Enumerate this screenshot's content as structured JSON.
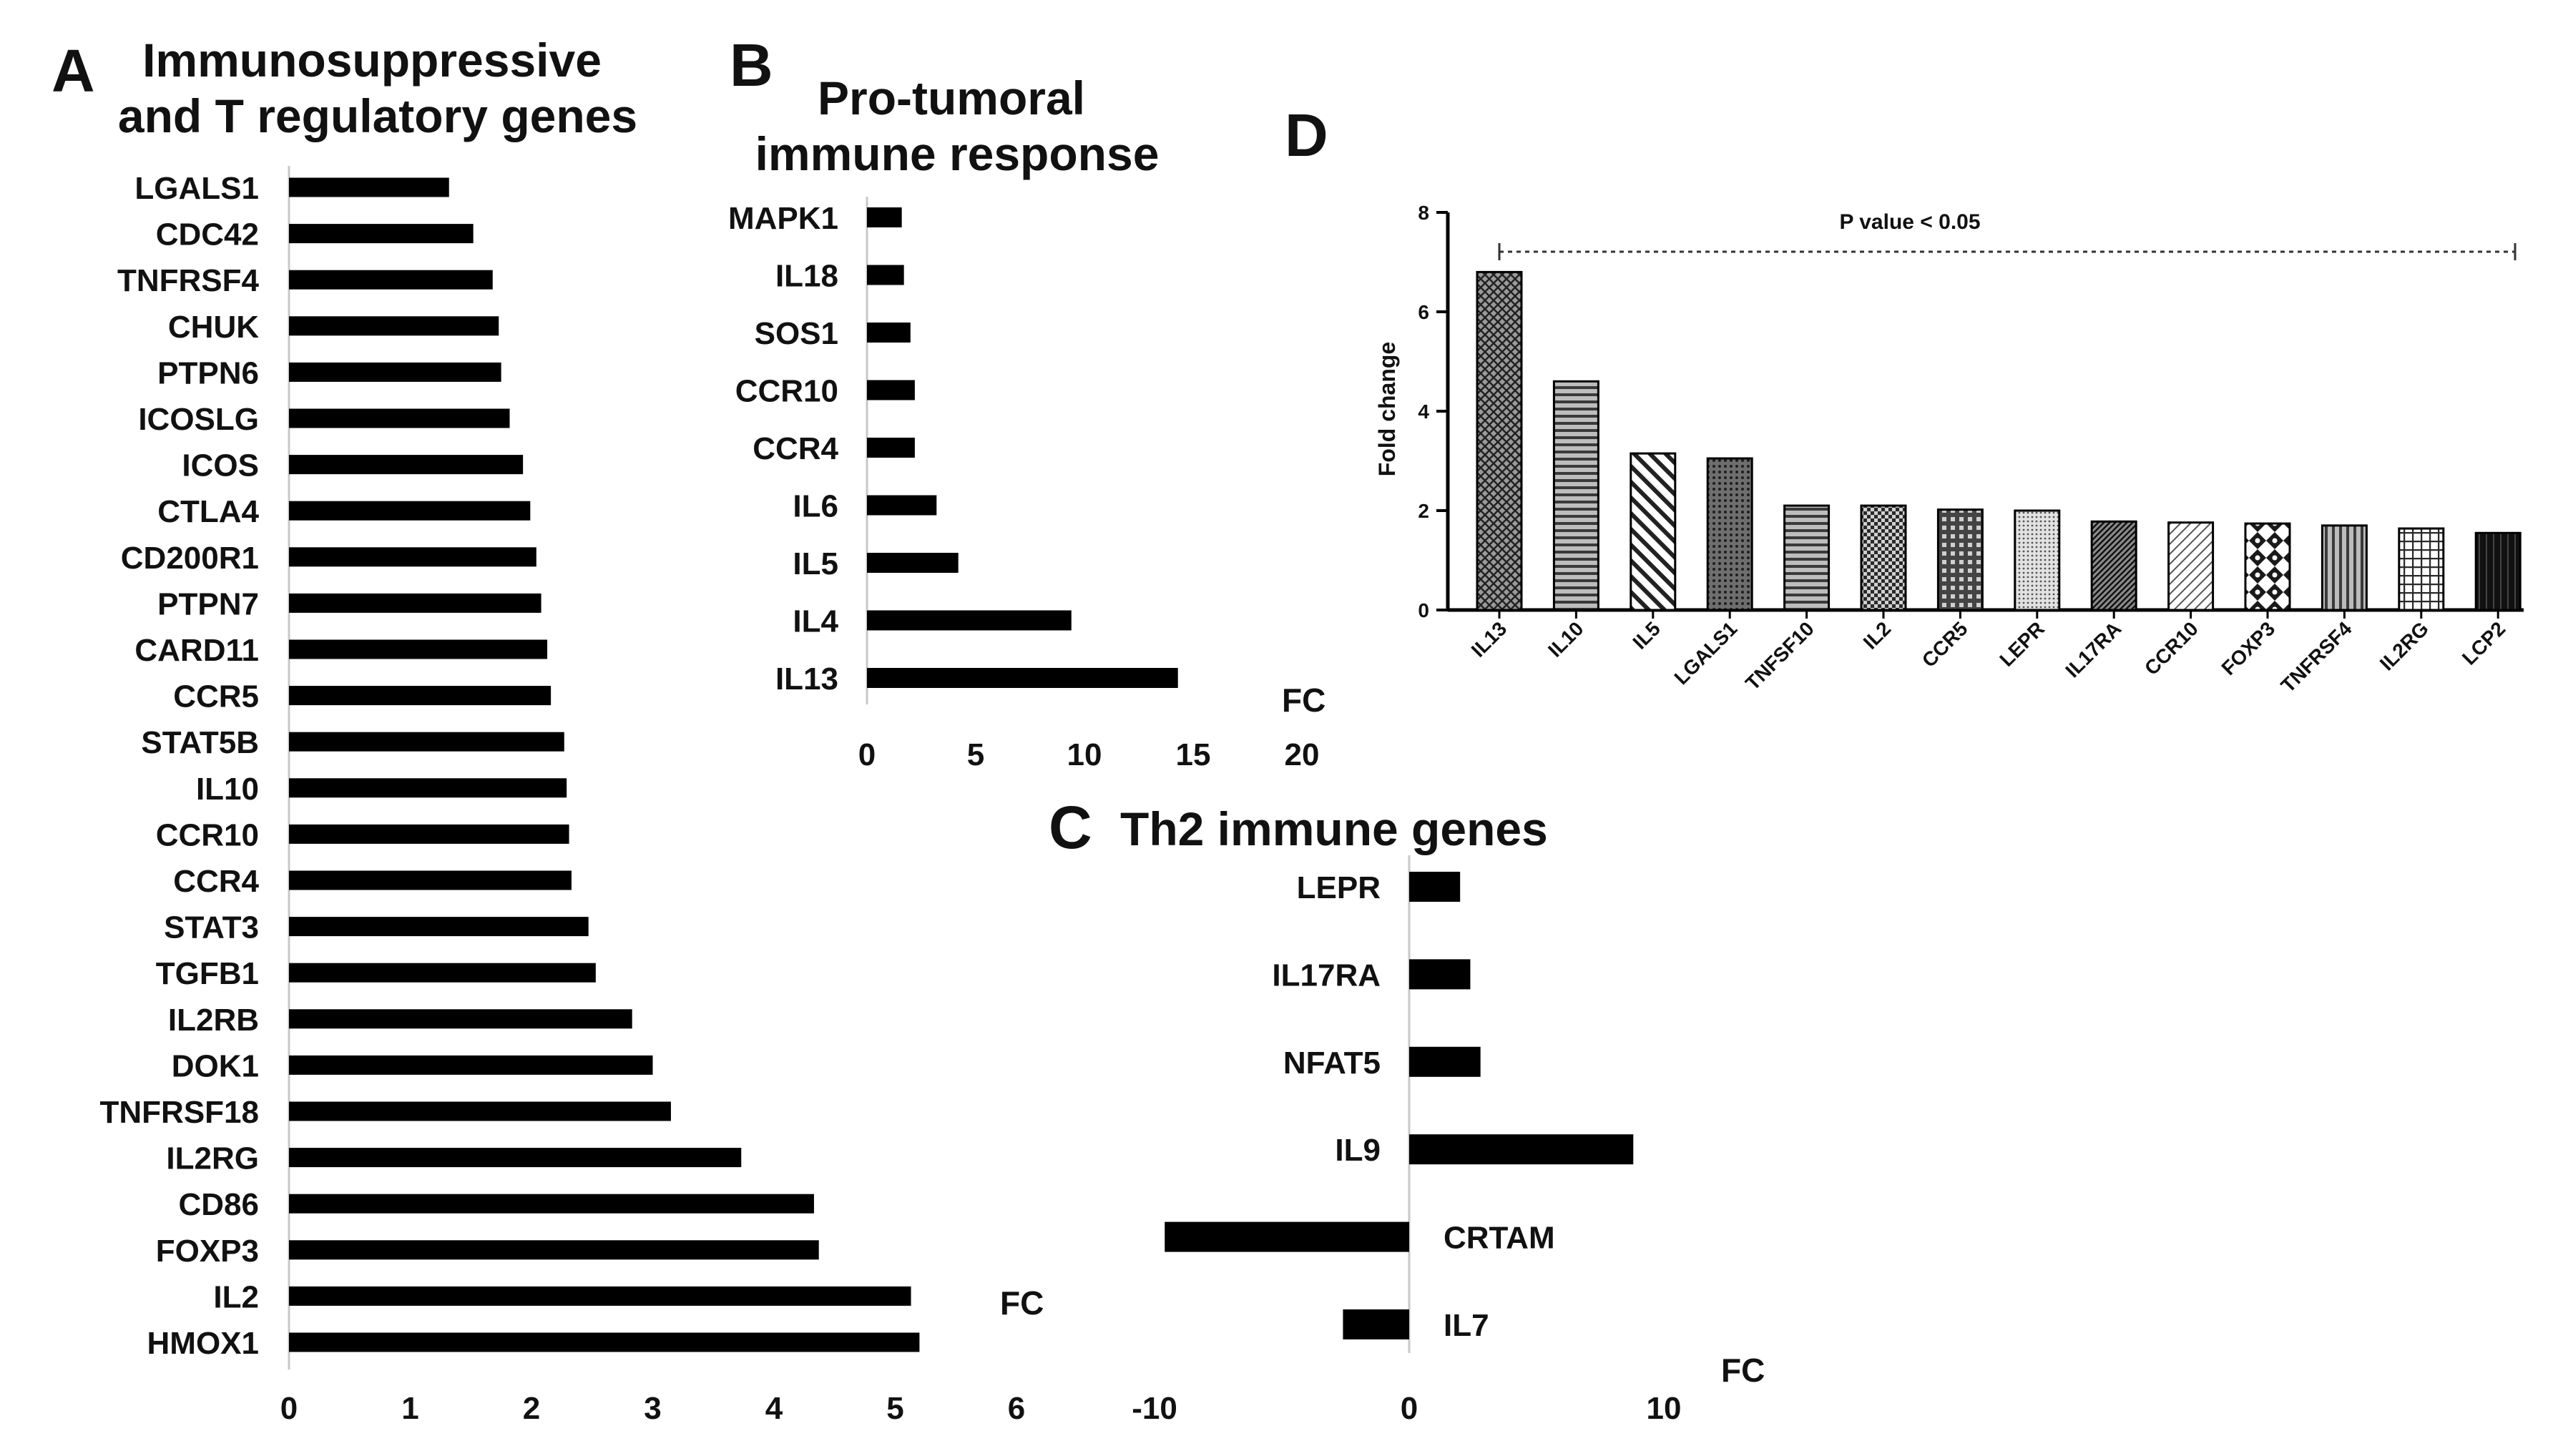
{
  "chart_data": [
    {
      "id": "A",
      "type": "bar",
      "orientation": "horizontal",
      "panel_letter": "A",
      "title_lines": [
        "Immunosuppressive",
        "and T regulatory genes"
      ],
      "xlabel": "FC",
      "xlim": [
        0,
        6
      ],
      "xticks": [
        0,
        1,
        2,
        3,
        4,
        5,
        6
      ],
      "categories": [
        "LGALS1",
        "CDC42",
        "TNFRSF4",
        "CHUK",
        "PTPN6",
        "ICOSLG",
        "ICOS",
        "CTLA4",
        "CD200R1",
        "PTPN7",
        "CARD11",
        "CCR5",
        "STAT5B",
        "IL10",
        "CCR10",
        "CCR4",
        "STAT3",
        "TGFB1",
        "IL2RB",
        "DOK1",
        "TNFRSF18",
        "IL2RG",
        "CD86",
        "FOXP3",
        "IL2",
        "HMOX1"
      ],
      "values": [
        1.32,
        1.52,
        1.68,
        1.73,
        1.75,
        1.82,
        1.93,
        1.99,
        2.04,
        2.08,
        2.13,
        2.16,
        2.27,
        2.29,
        2.31,
        2.33,
        2.47,
        2.53,
        2.83,
        3.0,
        3.15,
        3.73,
        4.33,
        4.37,
        5.13,
        5.2
      ]
    },
    {
      "id": "B",
      "type": "bar",
      "orientation": "horizontal",
      "panel_letter": "B",
      "title_lines": [
        "Pro-tumoral",
        "immune response"
      ],
      "xlabel": "FC",
      "xlim": [
        0,
        20
      ],
      "xticks": [
        0,
        5,
        10,
        15,
        20
      ],
      "categories": [
        "MAPK1",
        "IL18",
        "SOS1",
        "CCR10",
        "CCR4",
        "IL6",
        "IL5",
        "IL4",
        "IL13"
      ],
      "values": [
        1.6,
        1.7,
        2.0,
        2.2,
        2.2,
        3.2,
        4.2,
        9.4,
        14.3
      ]
    },
    {
      "id": "C",
      "type": "bar",
      "orientation": "horizontal",
      "panel_letter": "C",
      "title_lines": [
        "Th2 immune genes"
      ],
      "xlabel": "FC",
      "xlim": [
        -10,
        10
      ],
      "xticks": [
        -10,
        0,
        10
      ],
      "categories": [
        "LEPR",
        "IL17RA",
        "NFAT5",
        "IL9",
        "CRTAM",
        "IL7"
      ],
      "values": [
        2.0,
        2.4,
        2.8,
        8.8,
        -9.6,
        -2.6
      ]
    },
    {
      "id": "D",
      "type": "bar",
      "orientation": "vertical",
      "panel_letter": "D",
      "ylabel": "Fold change",
      "ylim": [
        0,
        8
      ],
      "yticks": [
        0,
        2,
        4,
        6,
        8
      ],
      "annotation": "P value < 0.05",
      "categories": [
        "IL13",
        "IL10",
        "IL5",
        "LGALS1",
        "TNFSF10",
        "IL2",
        "CCR5",
        "LEPR",
        "IL17RA",
        "CCR10",
        "FOXP3",
        "TNFRSF4",
        "IL2RG",
        "LCP2"
      ],
      "values": [
        6.8,
        4.6,
        3.15,
        3.05,
        2.1,
        2.1,
        2.02,
        2.0,
        1.78,
        1.76,
        1.74,
        1.7,
        1.64,
        1.55
      ],
      "patterns": [
        "cross",
        "hline",
        "diag",
        "dots",
        "hline",
        "checker",
        "grid",
        "fine",
        "diagdense",
        "diagwave",
        "bigcheck",
        "vline",
        "smallgrid",
        "solid"
      ]
    }
  ]
}
